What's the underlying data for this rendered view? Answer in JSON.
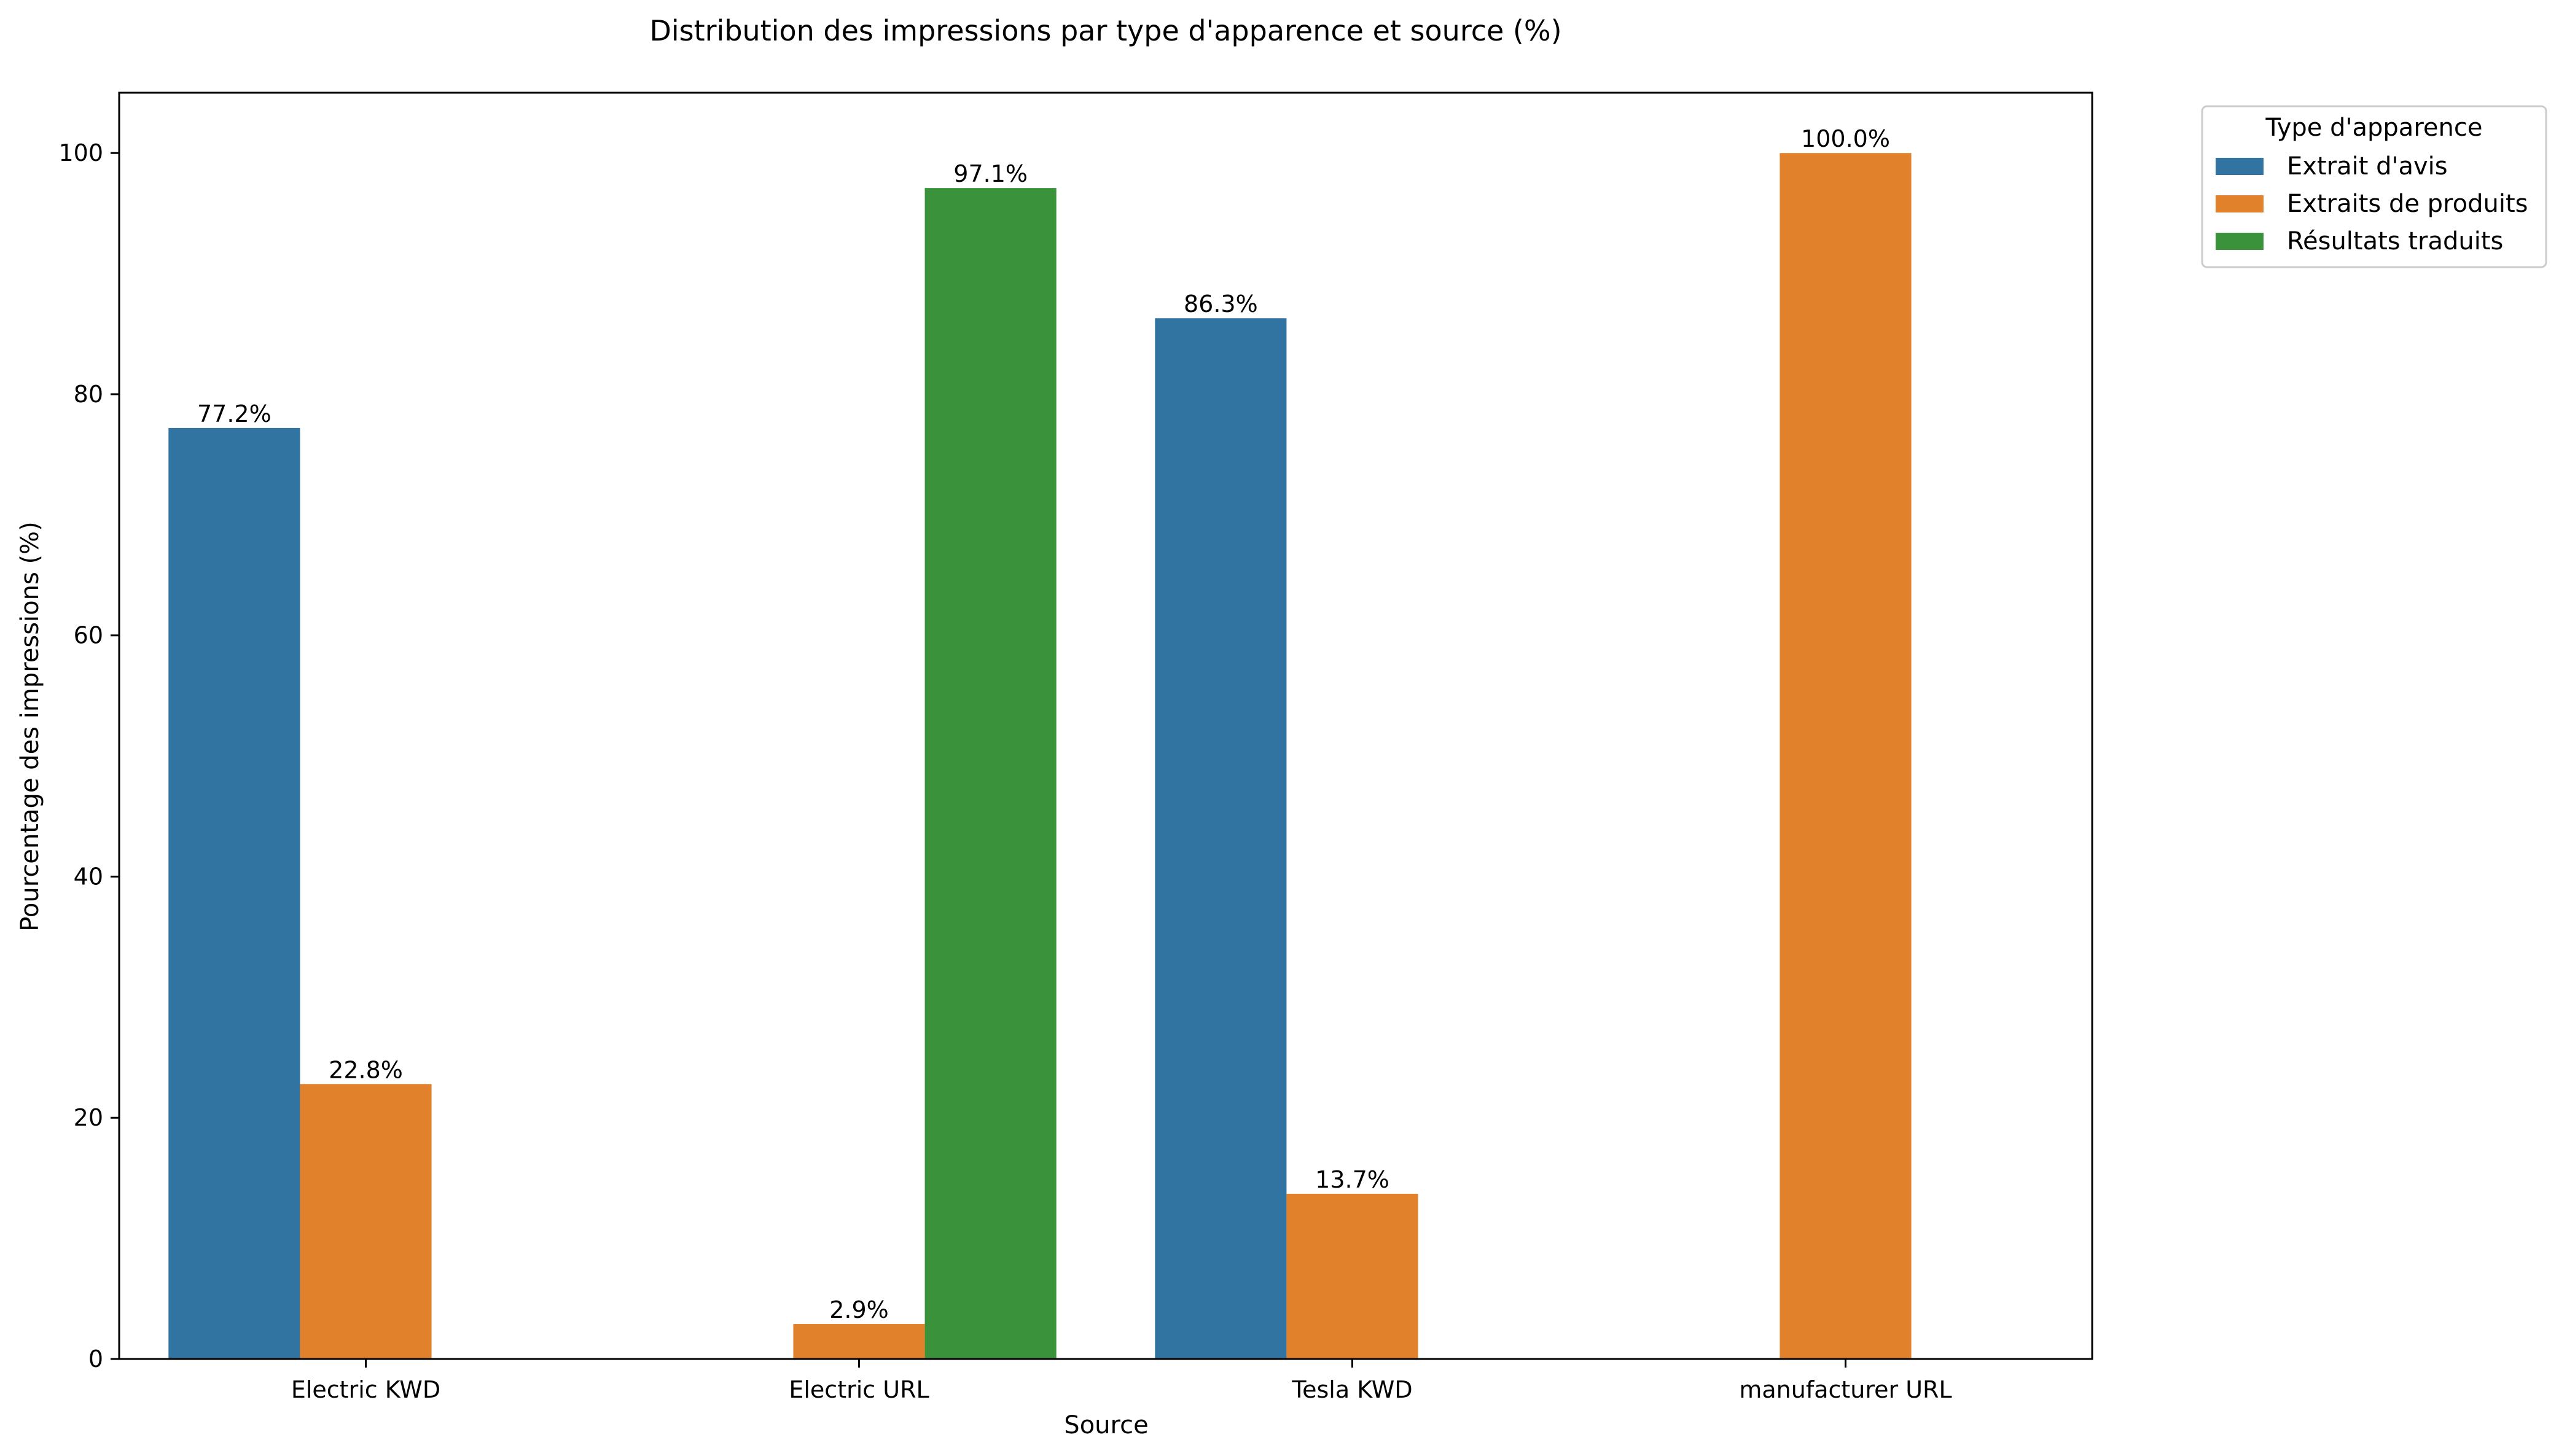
{
  "chart_data": {
    "type": "bar",
    "title": "Distribution des impressions par type d'apparence et source (%)",
    "xlabel": "Source",
    "ylabel": "Pourcentage des impressions (%)",
    "categories": [
      "Electric KWD",
      "Electric URL",
      "Tesla KWD",
      "manufacturer URL"
    ],
    "ylim": [
      0,
      105
    ],
    "yticks": [
      0,
      20,
      40,
      60,
      80,
      100
    ],
    "grid": false,
    "legend": {
      "title": "Type d'apparence",
      "placement": "outside top-right"
    },
    "series": [
      {
        "name": "Extrait d'avis",
        "color": "#3274a1",
        "values": [
          77.2,
          null,
          86.3,
          null
        ],
        "labels": [
          "77.2%",
          null,
          "86.3%",
          null
        ]
      },
      {
        "name": "Extraits de produits",
        "color": "#e1812c",
        "values": [
          22.8,
          2.9,
          13.7,
          100.0
        ],
        "labels": [
          "22.8%",
          "2.9%",
          "13.7%",
          "100.0%"
        ]
      },
      {
        "name": "Résultats traduits",
        "color": "#3a923a",
        "values": [
          null,
          97.1,
          null,
          null
        ],
        "labels": [
          null,
          "97.1%",
          null,
          null
        ]
      }
    ]
  }
}
